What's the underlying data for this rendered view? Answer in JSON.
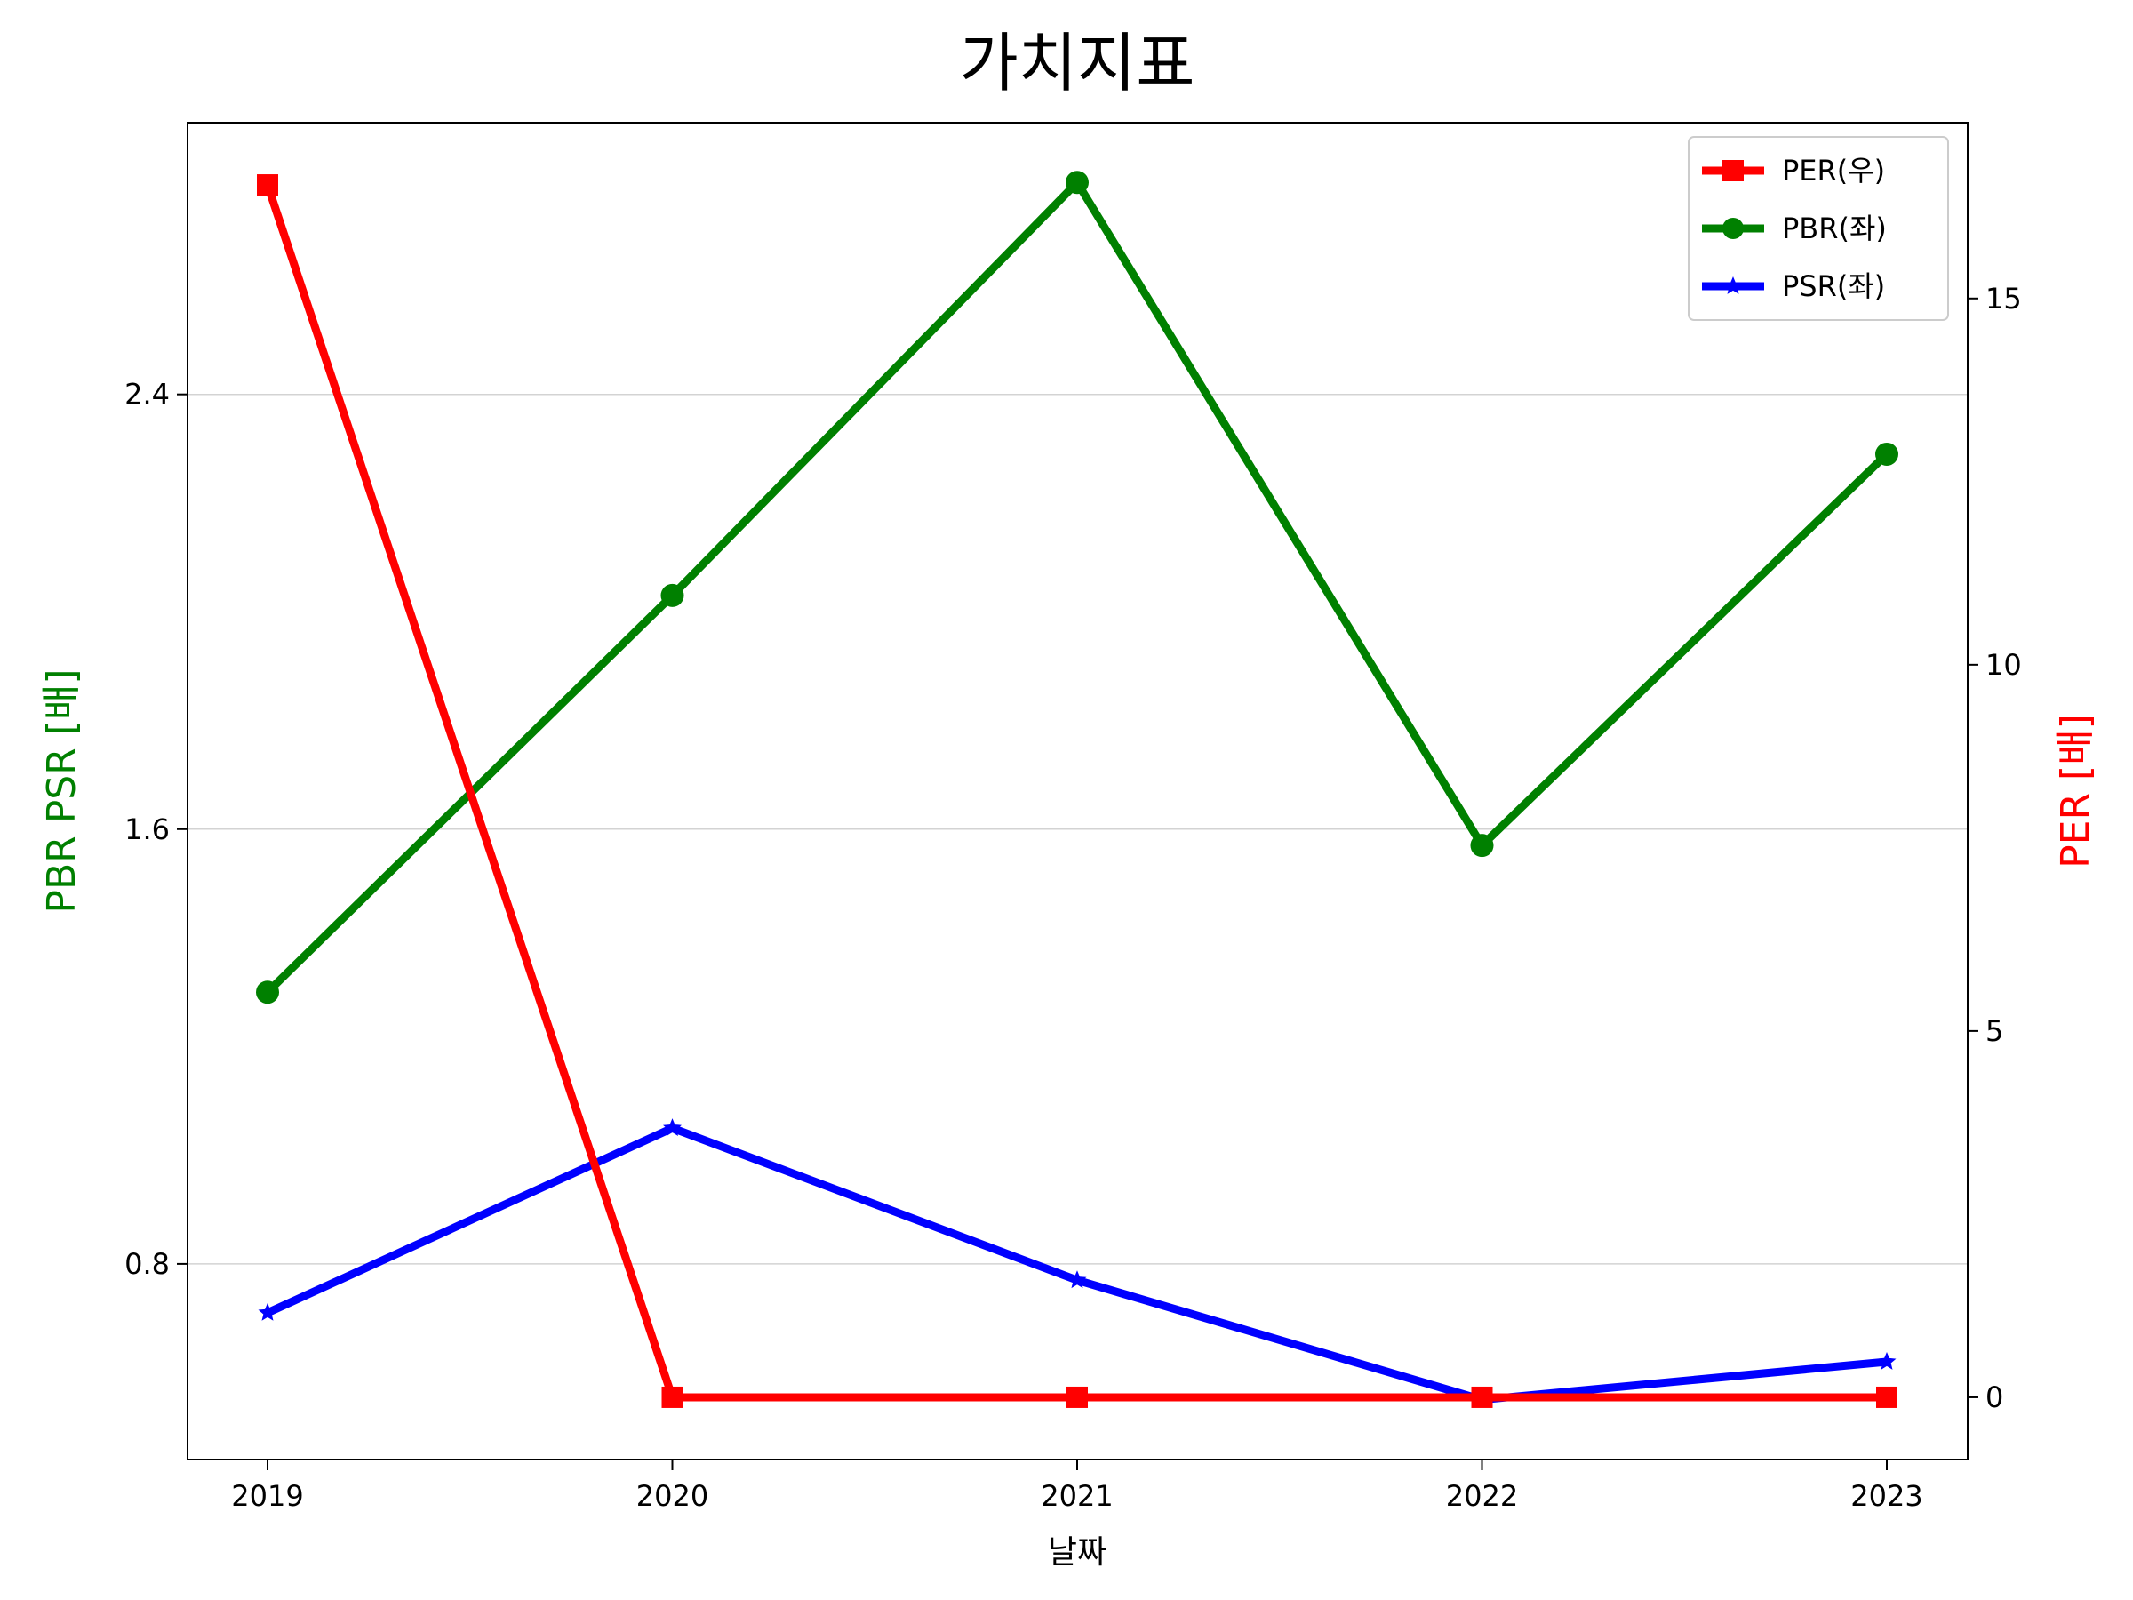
{
  "chart_data": {
    "type": "line",
    "title": "가치지표",
    "xlabel": "날짜",
    "ylabel_left": "PBR PSR [배]",
    "ylabel_right": "PER [배]",
    "categories": [
      "2019",
      "2020",
      "2021",
      "2022",
      "2023"
    ],
    "left_axis": {
      "ylim": [
        0.44,
        2.9
      ],
      "ticks": [
        0.8,
        1.6,
        2.4
      ],
      "tick_labels": [
        "0.8",
        "1.6",
        "2.4"
      ]
    },
    "right_axis": {
      "ylim": [
        -0.85,
        17.4
      ],
      "ticks": [
        0,
        5,
        10,
        15
      ],
      "tick_labels": [
        "0",
        "5",
        "10",
        "15"
      ]
    },
    "grid": "horizontal gridlines at left-axis ticks",
    "legend_position": "top-right",
    "series": [
      {
        "name": "PER(우)",
        "axis": "right",
        "color": "#ff0000",
        "marker": "square",
        "values": [
          16.55,
          0,
          0,
          0,
          0
        ]
      },
      {
        "name": "PBR(좌)",
        "axis": "left",
        "color": "#008000",
        "marker": "circle",
        "values": [
          1.3,
          2.03,
          2.79,
          1.57,
          2.29
        ]
      },
      {
        "name": "PSR(좌)",
        "axis": "left",
        "color": "#0000ff",
        "marker": "star",
        "values": [
          0.71,
          1.05,
          0.77,
          0.55,
          0.62
        ]
      }
    ]
  }
}
